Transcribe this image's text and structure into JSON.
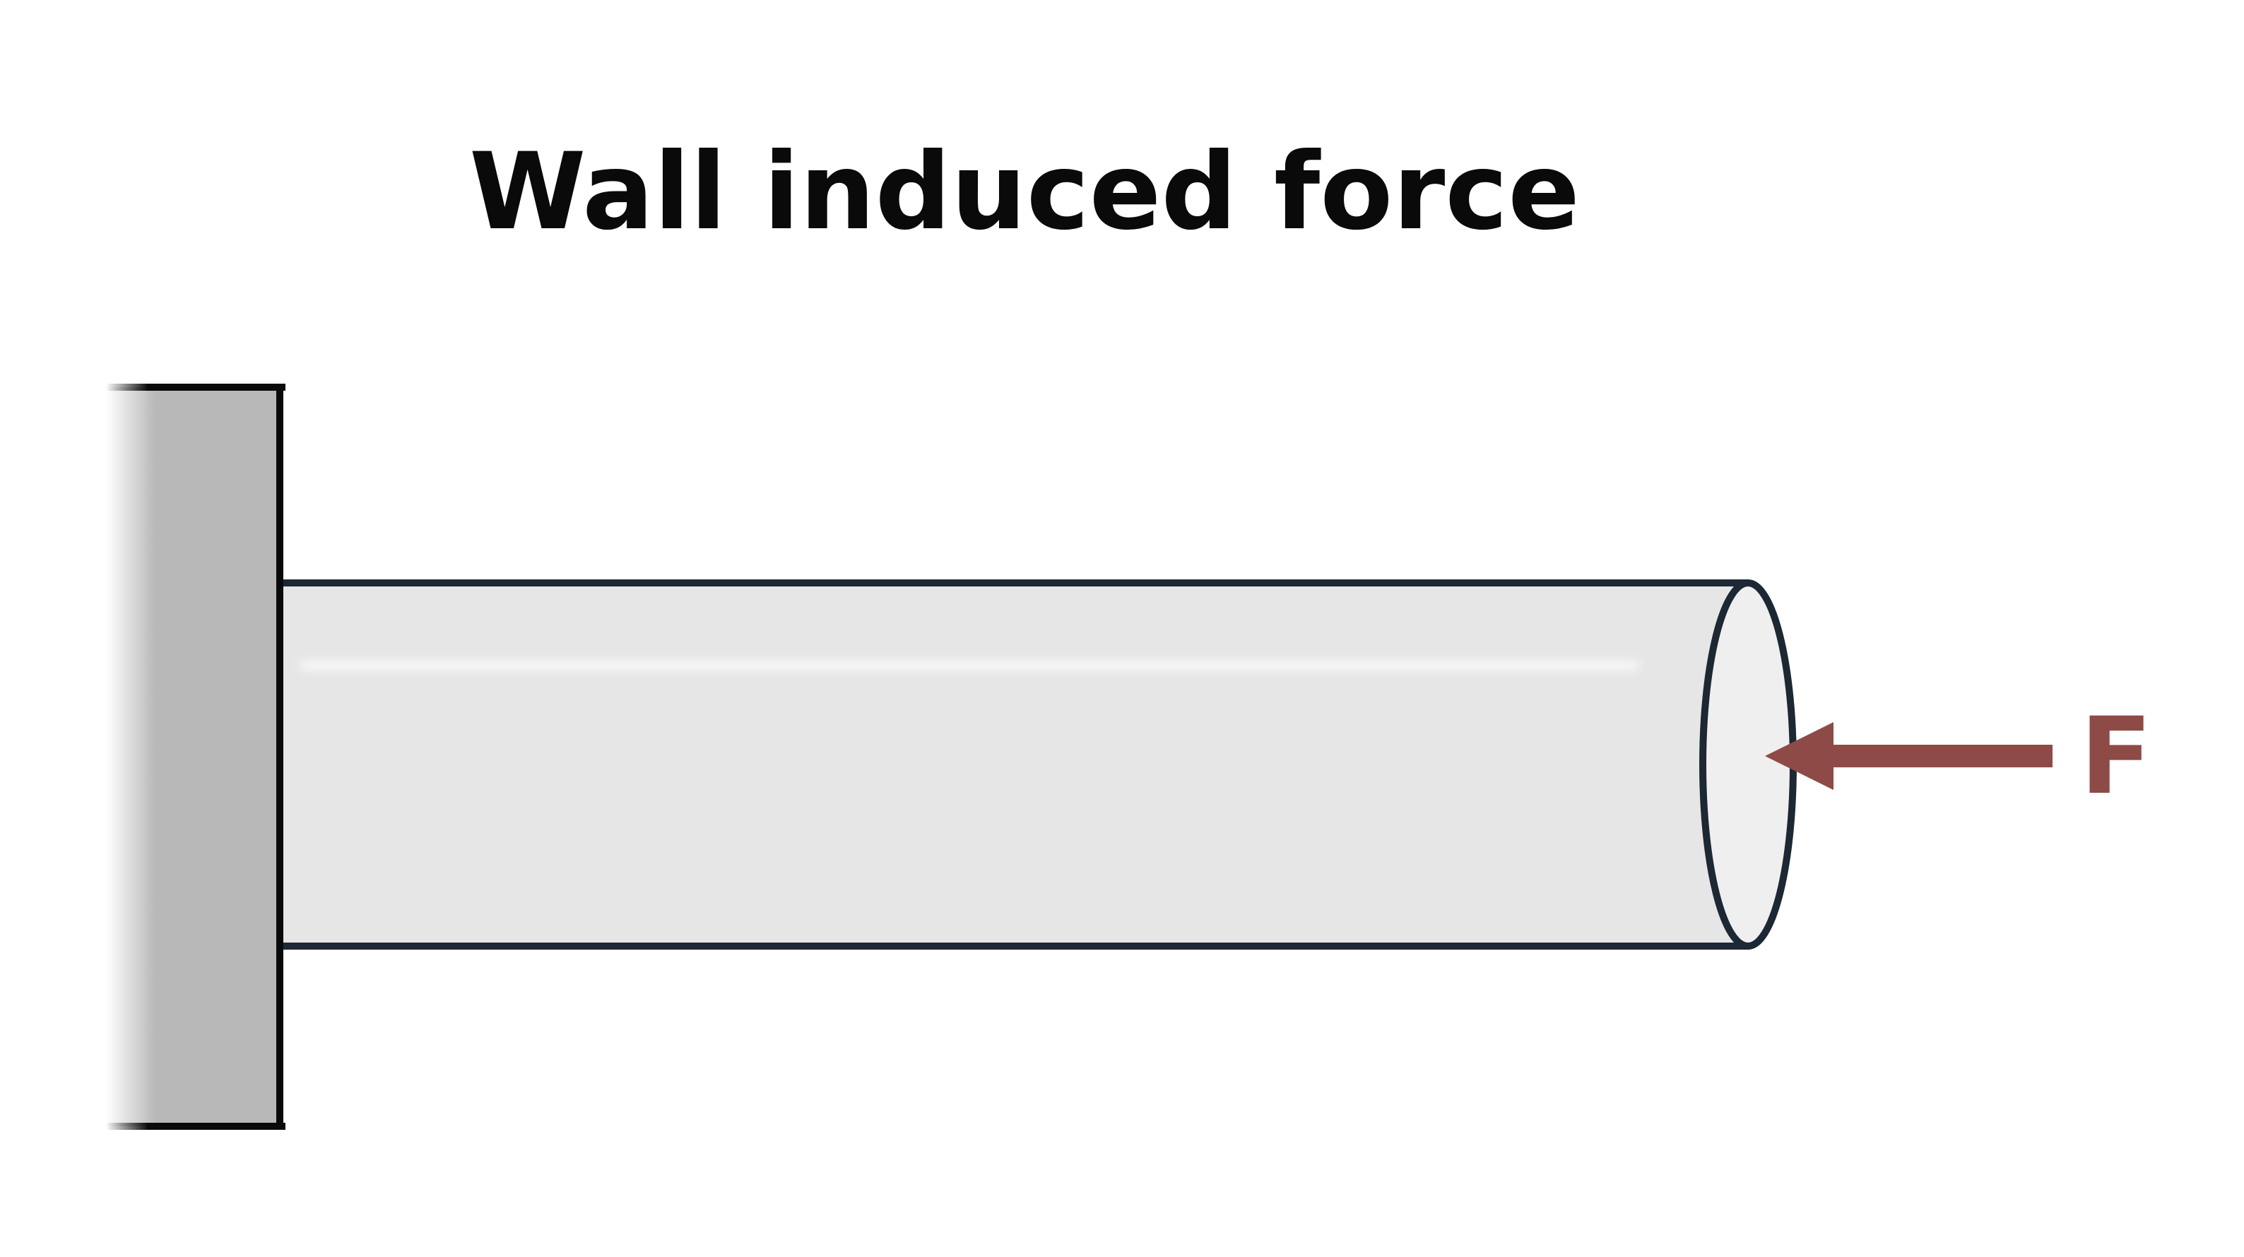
{
  "diagram": {
    "title": "Wall induced force",
    "force_label": "F"
  },
  "colors": {
    "title": "#0a0a0a",
    "wall_fill": "#b8b8b8",
    "wall_stroke": "#0a0a0a",
    "rod_fill": "#e6e6e6",
    "rod_end_fill": "#efefef",
    "rod_stroke": "#1c2833",
    "highlight": "#ffffff",
    "force": "#8e4a46"
  }
}
